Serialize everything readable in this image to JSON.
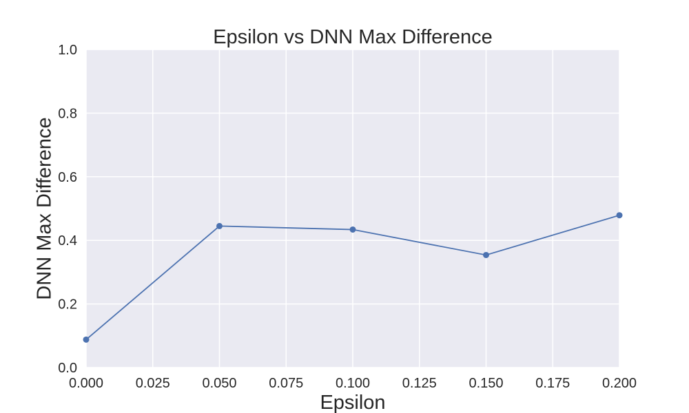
{
  "chart_data": {
    "type": "line",
    "title": "Epsilon vs DNN Max Difference",
    "xlabel": "Epsilon",
    "ylabel": "DNN Max Difference",
    "xlim": [
      0.0,
      0.2
    ],
    "ylim": [
      0.0,
      1.0
    ],
    "grid": true,
    "legend": "none",
    "x_ticks": [
      "0.000",
      "0.025",
      "0.050",
      "0.075",
      "0.100",
      "0.125",
      "0.150",
      "0.175",
      "0.200"
    ],
    "y_ticks": [
      "0.0",
      "0.2",
      "0.4",
      "0.6",
      "0.8",
      "1.0"
    ],
    "series": [
      {
        "x": [
          0.0,
          0.05,
          0.1,
          0.15,
          0.2
        ],
        "y": [
          0.088,
          0.445,
          0.434,
          0.354,
          0.479
        ],
        "color": "#4c72b0"
      }
    ]
  },
  "colors": {
    "plot_background": "#eaeaf2",
    "grid": "#ffffff",
    "line": "#4c72b0",
    "text": "#262626"
  }
}
